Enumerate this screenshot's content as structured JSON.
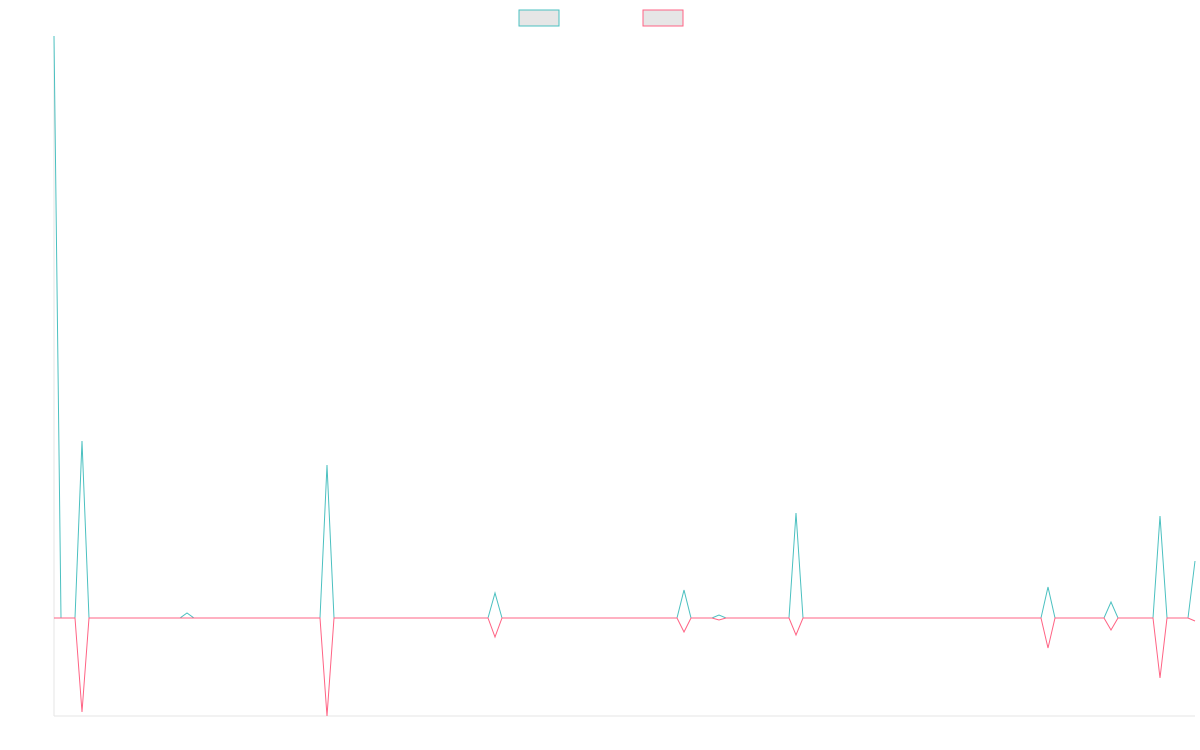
{
  "chart_data": {
    "type": "line",
    "series": [
      {
        "color": "#4bc0c0",
        "values": [
          582,
          0,
          0,
          0,
          177,
          0,
          0,
          0,
          0,
          0,
          0,
          0,
          0,
          0,
          0,
          0,
          0,
          0,
          0,
          5,
          0,
          0,
          0,
          0,
          0,
          0,
          0,
          0,
          0,
          0,
          0,
          0,
          0,
          0,
          0,
          0,
          0,
          0,
          0,
          153,
          0,
          0,
          0,
          0,
          0,
          0,
          0,
          0,
          0,
          0,
          0,
          0,
          0,
          0,
          0,
          0,
          0,
          0,
          0,
          0,
          0,
          0,
          0,
          25,
          0,
          0,
          0,
          0,
          0,
          0,
          0,
          0,
          0,
          0,
          0,
          0,
          0,
          0,
          0,
          0,
          0,
          0,
          0,
          0,
          0,
          0,
          0,
          0,
          0,
          0,
          28,
          0,
          0,
          0,
          0,
          3,
          0,
          0,
          0,
          0,
          0,
          0,
          0,
          0,
          0,
          0,
          105,
          0,
          0,
          0,
          0,
          0,
          0,
          0,
          0,
          0,
          0,
          0,
          0,
          0,
          0,
          0,
          0,
          0,
          0,
          0,
          0,
          0,
          0,
          0,
          0,
          0,
          0,
          0,
          0,
          0,
          0,
          0,
          0,
          0,
          0,
          0,
          31,
          0,
          0,
          0,
          0,
          0,
          0,
          0,
          0,
          16,
          0,
          0,
          0,
          0,
          0,
          0,
          102,
          0,
          0,
          0,
          0,
          57
        ]
      },
      {
        "color": "#ff6384",
        "values": [
          0,
          0,
          0,
          0,
          -94,
          0,
          0,
          0,
          0,
          0,
          0,
          0,
          0,
          0,
          0,
          0,
          0,
          0,
          0,
          0,
          0,
          0,
          0,
          0,
          0,
          0,
          0,
          0,
          0,
          0,
          0,
          0,
          0,
          0,
          0,
          0,
          0,
          0,
          0,
          -98,
          0,
          0,
          0,
          0,
          0,
          0,
          0,
          0,
          0,
          0,
          0,
          0,
          0,
          0,
          0,
          0,
          0,
          0,
          0,
          0,
          0,
          0,
          0,
          -19,
          0,
          0,
          0,
          0,
          0,
          0,
          0,
          0,
          0,
          0,
          0,
          0,
          0,
          0,
          0,
          0,
          0,
          0,
          0,
          0,
          0,
          0,
          0,
          0,
          0,
          0,
          -14,
          0,
          0,
          0,
          0,
          -2,
          0,
          0,
          0,
          0,
          0,
          0,
          0,
          0,
          0,
          0,
          -17,
          0,
          0,
          0,
          0,
          0,
          0,
          0,
          0,
          0,
          0,
          0,
          0,
          0,
          0,
          0,
          0,
          0,
          0,
          0,
          0,
          0,
          0,
          0,
          0,
          0,
          0,
          0,
          0,
          0,
          0,
          0,
          0,
          0,
          0,
          0,
          -30,
          0,
          0,
          0,
          0,
          0,
          0,
          0,
          0,
          -12,
          0,
          0,
          0,
          0,
          0,
          0,
          -60,
          0,
          0,
          0,
          0,
          -3
        ]
      }
    ],
    "ylim": [
      -98,
      582
    ]
  }
}
